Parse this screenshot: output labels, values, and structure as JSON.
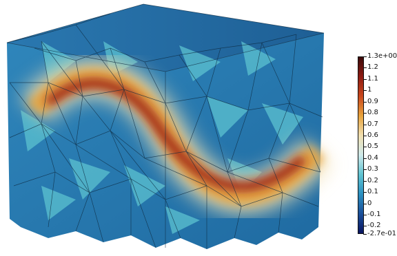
{
  "colorbar": {
    "max_label": "1.3e+00",
    "min_label": "-2.7e-01",
    "ticks": [
      "1.2",
      "1.1",
      "1",
      "0.9",
      "0.8",
      "0.7",
      "0.6",
      "0.5",
      "0.4",
      "0.3",
      "0.2",
      "0.1",
      "0",
      "-0.1",
      "-0.2"
    ],
    "colors": [
      "#3b0a0a",
      "#8e1b12",
      "#c9471c",
      "#e8a33c",
      "#f0dfb0",
      "#cfe9ea",
      "#5fc3d1",
      "#2a8fc0",
      "#1a4f9a",
      "#0a1560"
    ]
  },
  "scene": {
    "mesh_base_color": "#2a78b0",
    "mesh_top_color": "#2a6fa6",
    "hot_color": "#7a0d0d"
  }
}
